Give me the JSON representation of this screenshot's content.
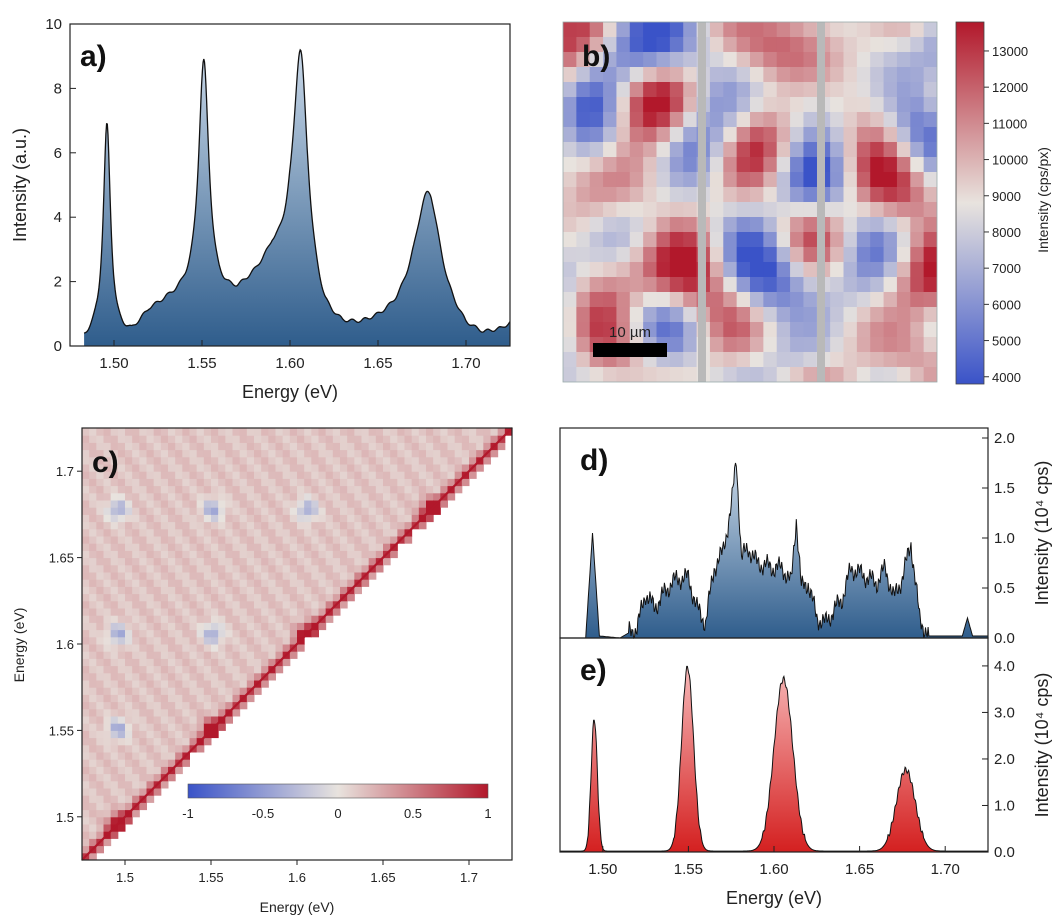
{
  "colors": {
    "blue_fill_top": "#c9d8e8",
    "blue_fill_bottom": "#2f5d8c",
    "red_fill_top": "#f7b8b8",
    "red_fill_bottom": "#d42020",
    "diverging_low": "#3a53c8",
    "diverging_mid": "#e8e3de",
    "diverging_high": "#b2182b"
  },
  "chart_data": [
    {
      "panel": "a",
      "label": "a)",
      "type": "area",
      "xlabel": "Energy  (eV)",
      "ylabel": "Intensity  (a.u.)",
      "xlim": [
        1.475,
        1.725
      ],
      "ylim": [
        0,
        10
      ],
      "xticks": [
        "1.50",
        "1.55",
        "1.60",
        "1.65",
        "1.70"
      ],
      "yticks": [
        "0",
        "2",
        "4",
        "6",
        "8",
        "10"
      ],
      "peaks": [
        {
          "center": 1.496,
          "height": 6.6,
          "width": 0.0025
        },
        {
          "center": 1.551,
          "height": 7.2,
          "width": 0.0035
        },
        {
          "center": 1.606,
          "height": 7.3,
          "width": 0.005
        },
        {
          "center": 1.678,
          "height": 3.2,
          "width": 0.009
        }
      ],
      "x": [
        1.483,
        1.49,
        1.5,
        1.51,
        1.52,
        1.53,
        1.54,
        1.55,
        1.56,
        1.57,
        1.58,
        1.59,
        1.6,
        1.61,
        1.62,
        1.63,
        1.64,
        1.65,
        1.66,
        1.67,
        1.68,
        1.69,
        1.7,
        1.71,
        1.72,
        1.725
      ],
      "baseline": [
        0.1,
        0.3,
        0.2,
        0.3,
        1.0,
        1.3,
        1.5,
        1.6,
        1.4,
        1.5,
        2.0,
        2.6,
        2.4,
        1.4,
        0.6,
        0.4,
        0.45,
        0.6,
        0.8,
        1.2,
        1.6,
        0.8,
        0.3,
        0.2,
        0.4,
        0.6
      ]
    },
    {
      "panel": "b",
      "label": "b)",
      "type": "heatmap",
      "colorbar_title": "Intensity  (cps/px)",
      "colorbar_range": [
        3800,
        13800
      ],
      "colorbar_ticks": [
        "4000",
        "5000",
        "6000",
        "7000",
        "8000",
        "9000",
        "10000",
        "11000",
        "12000",
        "13000"
      ],
      "scalebar_label": "10 µm",
      "grid_columns": 28,
      "grid_rows": 24,
      "seed": 7
    },
    {
      "panel": "c",
      "label": "c)",
      "type": "heatmap",
      "xlabel": "Energy (eV)",
      "ylabel": "Energy (eV)",
      "xlim": [
        1.475,
        1.725
      ],
      "ylim": [
        1.475,
        1.725
      ],
      "xticks": [
        "1.5",
        "1.55",
        "1.6",
        "1.65",
        "1.7"
      ],
      "yticks": [
        "1.5",
        "1.55",
        "1.6",
        "1.65",
        "1.7"
      ],
      "colorbar_range": [
        -1,
        1
      ],
      "colorbar_ticks": [
        "-1",
        "-0.5",
        "0",
        "0.5",
        "1"
      ],
      "bands": [
        1.496,
        1.551,
        1.606,
        1.678
      ],
      "grid_cells": 60
    },
    {
      "panel": "d",
      "label": "d)",
      "type": "area",
      "ylabel": "Intensity  (10⁴ cps)",
      "xlim": [
        1.475,
        1.725
      ],
      "ylim": [
        0,
        2.1
      ],
      "yticks": [
        "0.0",
        "0.5",
        "1.0",
        "1.5",
        "2.0"
      ],
      "x": [
        1.475,
        1.49,
        1.494,
        1.498,
        1.51,
        1.52,
        1.525,
        1.53,
        1.54,
        1.545,
        1.55,
        1.555,
        1.56,
        1.565,
        1.57,
        1.575,
        1.578,
        1.581,
        1.585,
        1.59,
        1.6,
        1.605,
        1.61,
        1.613,
        1.616,
        1.62,
        1.625,
        1.63,
        1.64,
        1.645,
        1.65,
        1.66,
        1.665,
        1.67,
        1.675,
        1.68,
        1.685,
        1.69,
        1.7,
        1.71,
        1.713,
        1.716,
        1.725
      ],
      "y": [
        0.0,
        0.0,
        1.05,
        0.02,
        0.0,
        0.1,
        0.45,
        0.3,
        0.55,
        0.6,
        0.6,
        0.3,
        0.15,
        0.7,
        0.85,
        1.3,
        1.8,
        0.8,
        0.9,
        0.75,
        0.7,
        0.7,
        0.55,
        1.2,
        0.5,
        0.55,
        0.2,
        0.15,
        0.4,
        0.7,
        0.65,
        0.55,
        0.7,
        0.4,
        0.6,
        0.95,
        0.2,
        0.02,
        0.02,
        0.02,
        0.2,
        0.02,
        0.02
      ]
    },
    {
      "panel": "e",
      "label": "e)",
      "type": "area",
      "xlabel": "Energy  (eV)",
      "ylabel": "Intensity  (10⁴ cps)",
      "xlim": [
        1.475,
        1.725
      ],
      "ylim": [
        0,
        4.6
      ],
      "xticks": [
        "1.50",
        "1.55",
        "1.60",
        "1.65",
        "1.70"
      ],
      "yticks": [
        "0.0",
        "1.0",
        "2.0",
        "3.0",
        "4.0"
      ],
      "peaks": [
        {
          "center": 1.495,
          "height": 2.85,
          "width": 0.0018
        },
        {
          "center": 1.5495,
          "height": 3.95,
          "width": 0.0035
        },
        {
          "center": 1.6055,
          "height": 3.7,
          "width": 0.0055
        },
        {
          "center": 1.677,
          "height": 1.75,
          "width": 0.0055
        }
      ]
    }
  ]
}
